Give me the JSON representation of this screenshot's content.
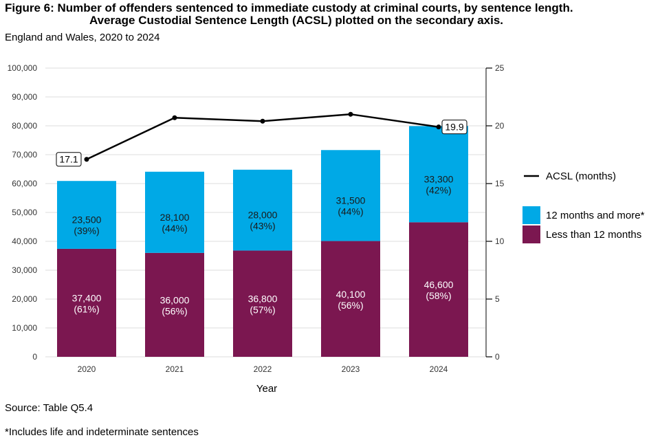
{
  "title_line1": "Figure 6: Number of offenders sentenced to immediate custody at criminal courts, by sentence length.",
  "title_line2": "Average Custodial Sentence Length (ACSL) plotted on the secondary axis.",
  "subtitle": "England and Wales, 2020 to 2024",
  "source": "Source: Table Q5.4",
  "footnote": "*Includes life and indeterminate sentences",
  "colors": {
    "less_than_12": "#7b1750",
    "twelve_plus": "#00a9e6",
    "acsl_line": "#000000",
    "grid": "#dedede"
  },
  "chart_data": {
    "type": "bar",
    "stacked": true,
    "title": "Number of offenders sentenced to immediate custody at criminal courts, by sentence length",
    "xlabel": "Year",
    "ylabel": "",
    "categories": [
      "2020",
      "2021",
      "2022",
      "2023",
      "2024"
    ],
    "ylim": [
      0,
      100000
    ],
    "y_ticks": [
      "0",
      "10,000",
      "20,000",
      "30,000",
      "40,000",
      "50,000",
      "60,000",
      "70,000",
      "80,000",
      "90,000",
      "100,000"
    ],
    "y2lim": [
      0,
      25
    ],
    "y2_ticks": [
      "0",
      "5",
      "10",
      "15",
      "20",
      "25"
    ],
    "series": [
      {
        "name": "Less than 12 months",
        "color": "#7b1750",
        "values": [
          37400,
          36000,
          36800,
          40100,
          46600
        ],
        "labels": [
          "37,400",
          "36,000",
          "36,800",
          "40,100",
          "46,600"
        ],
        "percents": [
          "(61%)",
          "(56%)",
          "(57%)",
          "(56%)",
          "(58%)"
        ]
      },
      {
        "name": "12 months and more*",
        "color": "#00a9e6",
        "values": [
          23500,
          28100,
          28000,
          31500,
          33300
        ],
        "labels": [
          "23,500",
          "28,100",
          "28,000",
          "31,500",
          "33,300"
        ],
        "percents": [
          "(39%)",
          "(44%)",
          "(43%)",
          "(44%)",
          "(42%)"
        ]
      }
    ],
    "line": {
      "name": "ACSL (months)",
      "axis": "secondary",
      "values": [
        17.1,
        20.7,
        20.4,
        21.0,
        19.9
      ],
      "point_labels": [
        "17.1",
        "",
        "",
        "",
        "19.9"
      ]
    },
    "legend": {
      "placement": "right",
      "line_item": "ACSL (months)",
      "bar_items": [
        "12 months and more*",
        "Less than 12 months"
      ]
    }
  }
}
